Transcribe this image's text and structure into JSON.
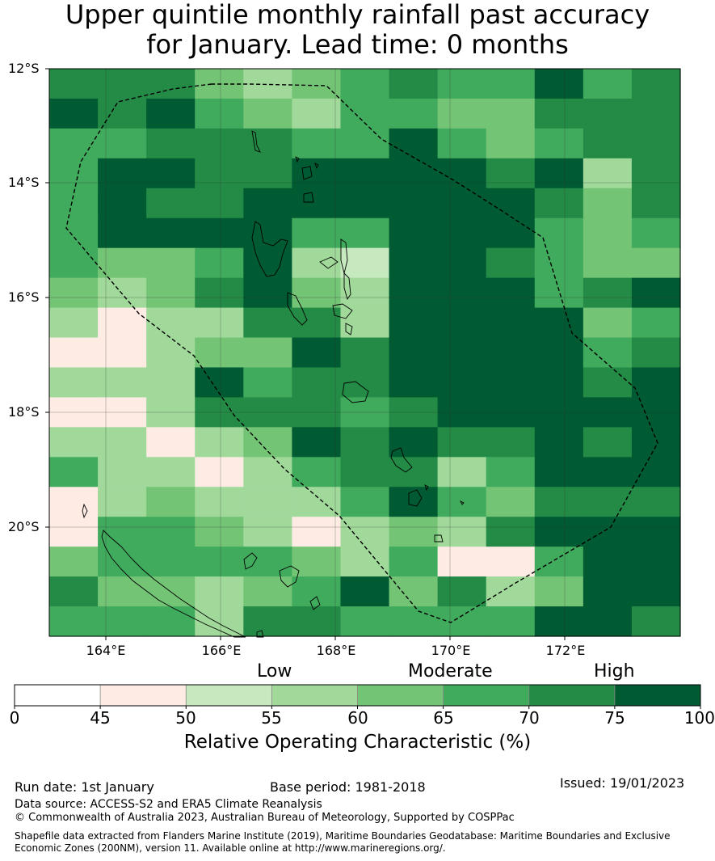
{
  "title": {
    "line1": "Upper quintile monthly rainfall past accuracy",
    "line2": "for January. Lead time: 0 months"
  },
  "map": {
    "lat_labels": [
      "12°S",
      "14°S",
      "16°S",
      "18°S",
      "20°S"
    ],
    "lon_labels": [
      "164°E",
      "166°E",
      "168°E",
      "170°E",
      "172°E"
    ],
    "lon_range": [
      163,
      174
    ],
    "lat_range": [
      -21.9,
      -12
    ],
    "grid_step_deg": 0.833,
    "roc_grid_percent_bins": [
      [
        "70-75",
        "70-75",
        "70-75",
        "60-65",
        "55-60",
        "60-65",
        "65-70",
        "70-75",
        "65-70",
        "65-70",
        "75-100",
        "65-70",
        "70-75"
      ],
      [
        "75-100",
        "70-75",
        "75-100",
        "65-70",
        "60-65",
        "55-60",
        "65-70",
        "65-70",
        "60-65",
        "60-65",
        "70-75",
        "70-75",
        "70-75"
      ],
      [
        "65-70",
        "65-70",
        "70-75",
        "70-75",
        "70-75",
        "65-70",
        "65-70",
        "75-100",
        "65-70",
        "60-65",
        "65-70",
        "70-75",
        "70-75"
      ],
      [
        "65-70",
        "75-100",
        "75-100",
        "70-75",
        "70-75",
        "75-100",
        "75-100",
        "75-100",
        "75-100",
        "70-75",
        "75-100",
        "55-60",
        "70-75"
      ],
      [
        "65-70",
        "75-100",
        "70-75",
        "70-75",
        "75-100",
        "75-100",
        "75-100",
        "75-100",
        "75-100",
        "75-100",
        "70-75",
        "60-65",
        "70-75"
      ],
      [
        "65-70",
        "75-100",
        "75-100",
        "75-100",
        "75-100",
        "65-70",
        "65-70",
        "75-100",
        "75-100",
        "75-100",
        "65-70",
        "60-65",
        "65-70"
      ],
      [
        "65-70",
        "60-65",
        "60-65",
        "65-70",
        "75-100",
        "55-60",
        "50-55",
        "75-100",
        "75-100",
        "70-75",
        "65-70",
        "60-65",
        "60-65"
      ],
      [
        "60-65",
        "55-60",
        "60-65",
        "70-75",
        "75-100",
        "60-65",
        "55-60",
        "75-100",
        "75-100",
        "75-100",
        "65-70",
        "70-75",
        "75-100"
      ],
      [
        "55-60",
        "45-50",
        "55-60",
        "55-60",
        "70-75",
        "70-75",
        "55-60",
        "75-100",
        "75-100",
        "75-100",
        "75-100",
        "60-65",
        "65-70"
      ],
      [
        "45-50",
        "45-50",
        "55-60",
        "60-65",
        "60-65",
        "75-100",
        "70-75",
        "75-100",
        "75-100",
        "75-100",
        "75-100",
        "65-70",
        "70-75"
      ],
      [
        "55-60",
        "55-60",
        "55-60",
        "75-100",
        "65-70",
        "70-75",
        "70-75",
        "75-100",
        "75-100",
        "75-100",
        "75-100",
        "70-75",
        "75-100"
      ],
      [
        "45-50",
        "45-50",
        "55-60",
        "70-75",
        "70-75",
        "70-75",
        "65-70",
        "70-75",
        "75-100",
        "75-100",
        "75-100",
        "75-100",
        "75-100"
      ],
      [
        "55-60",
        "55-60",
        "45-50",
        "55-60",
        "60-65",
        "75-100",
        "70-75",
        "75-100",
        "70-75",
        "70-75",
        "75-100",
        "70-75",
        "75-100"
      ],
      [
        "65-70",
        "55-60",
        "55-60",
        "45-50",
        "55-60",
        "65-70",
        "70-75",
        "70-75",
        "55-60",
        "65-70",
        "75-100",
        "75-100",
        "75-100"
      ],
      [
        "45-50",
        "55-60",
        "60-65",
        "55-60",
        "55-60",
        "55-60",
        "65-70",
        "75-100",
        "65-70",
        "60-65",
        "70-75",
        "70-75",
        "70-75"
      ],
      [
        "45-50",
        "65-70",
        "65-70",
        "60-65",
        "55-60",
        "45-50",
        "55-60",
        "60-65",
        "55-60",
        "70-75",
        "75-100",
        "75-100",
        "75-100"
      ],
      [
        "60-65",
        "65-70",
        "65-70",
        "65-70",
        "65-70",
        "60-65",
        "55-60",
        "65-70",
        "45-50",
        "45-50",
        "65-70",
        "75-100",
        "75-100"
      ],
      [
        "70-75",
        "60-65",
        "60-65",
        "55-60",
        "60-65",
        "65-70",
        "75-100",
        "60-65",
        "70-75",
        "55-60",
        "60-65",
        "75-100",
        "75-100"
      ],
      [
        "65-70",
        "65-70",
        "65-70",
        "55-60",
        "70-75",
        "70-75",
        "65-70",
        "65-70",
        "65-70",
        "65-70",
        "75-100",
        "75-100",
        "70-75"
      ]
    ]
  },
  "colorbar": {
    "category_labels": {
      "low": "Low",
      "moderate": "Moderate",
      "high": "High"
    },
    "ticks": [
      "0",
      "45",
      "50",
      "55",
      "60",
      "65",
      "70",
      "75",
      "100"
    ],
    "bins": [
      {
        "range": "0-45",
        "color": "#ffffff"
      },
      {
        "range": "45-50",
        "color": "#fdebe4"
      },
      {
        "range": "50-55",
        "color": "#c7e9c0"
      },
      {
        "range": "55-60",
        "color": "#a1d99b"
      },
      {
        "range": "60-65",
        "color": "#74c476"
      },
      {
        "range": "65-70",
        "color": "#41ab5d"
      },
      {
        "range": "70-75",
        "color": "#238b45"
      },
      {
        "range": "75-100",
        "color": "#005a32"
      }
    ],
    "title": "Relative Operating Characteristic (%)"
  },
  "footer": {
    "run_date": "Run date: 1st January",
    "base_period": "Base period: 1981-2018",
    "issued": "Issued: 19/01/2023",
    "data_source": "Data source: ACCESS-S2 and ERA5 Climate Reanalysis",
    "copyright": "© Commonwealth of Australia 2023, Australian Bureau of Meteorology, Supported by COSPPac",
    "shapefile_line1": "Shapefile data extracted from Flanders Marine Institute (2019), Maritime Boundaries Geodatabase: Maritime Boundaries and Exclusive",
    "shapefile_line2": "Economic Zones (200NM), version 11. Available online at http://www.marineregions.org/."
  }
}
